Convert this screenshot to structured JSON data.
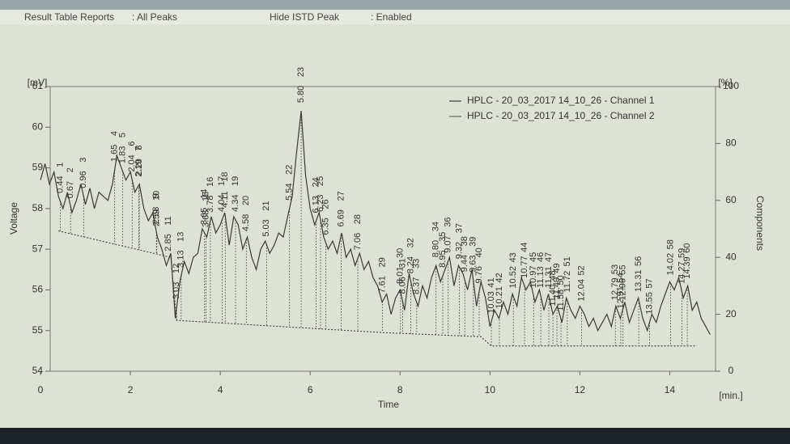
{
  "header": {
    "report_label": "Result Table Reports",
    "report_value": ": All Peaks",
    "istd_label": "Hide ISTD Peak",
    "istd_value": ": Enabled"
  },
  "chart_data": {
    "type": "line",
    "xlabel": "Time",
    "xunit": "[min.]",
    "ylabel": "Voltage",
    "yunit": "[mV]",
    "y2label": "Components",
    "y2unit": "[%]",
    "xlim": [
      0,
      15
    ],
    "xticks": [
      0,
      2,
      4,
      6,
      8,
      10,
      12,
      14
    ],
    "ylim": [
      54,
      61
    ],
    "yticks": [
      54,
      55,
      56,
      57,
      58,
      59,
      60,
      61
    ],
    "y2lim": [
      0,
      100
    ],
    "y2ticks": [
      0,
      20,
      40,
      60,
      80,
      100
    ],
    "legend_position": "upper right",
    "legend": [
      {
        "name": "HPLC - 20_03_2017 14_10_26 - Channel 1",
        "color": "#3a3a3a"
      },
      {
        "name": "HPLC - 20_03_2017 14_10_26 - Channel 2",
        "color": "#6a6a6a"
      }
    ],
    "series": [
      {
        "name": "HPLC - 20_03_2017 14_10_26 - Channel 1",
        "color": "#3a3a3a",
        "x": [
          0,
          0.1,
          0.2,
          0.3,
          0.4,
          0.5,
          0.6,
          0.7,
          0.8,
          0.9,
          1,
          1.1,
          1.2,
          1.3,
          1.4,
          1.5,
          1.6,
          1.7,
          1.8,
          1.9,
          2,
          2.1,
          2.2,
          2.3,
          2.4,
          2.5,
          2.6,
          2.7,
          2.8,
          2.9,
          3,
          3.1,
          3.2,
          3.3,
          3.4,
          3.5,
          3.6,
          3.7,
          3.8,
          3.9,
          4,
          4.1,
          4.2,
          4.3,
          4.4,
          4.5,
          4.6,
          4.7,
          4.8,
          4.9,
          5,
          5.1,
          5.2,
          5.3,
          5.4,
          5.5,
          5.6,
          5.7,
          5.8,
          5.9,
          6,
          6.1,
          6.2,
          6.3,
          6.4,
          6.5,
          6.6,
          6.7,
          6.8,
          6.9,
          7,
          7.1,
          7.2,
          7.3,
          7.4,
          7.5,
          7.6,
          7.7,
          7.8,
          7.9,
          8,
          8.1,
          8.2,
          8.3,
          8.4,
          8.5,
          8.6,
          8.7,
          8.8,
          8.9,
          9,
          9.1,
          9.2,
          9.3,
          9.4,
          9.5,
          9.6,
          9.7,
          9.8,
          9.9,
          10,
          10.1,
          10.2,
          10.3,
          10.4,
          10.5,
          10.6,
          10.7,
          10.8,
          10.9,
          11,
          11.1,
          11.2,
          11.3,
          11.4,
          11.5,
          11.6,
          11.7,
          11.8,
          11.9,
          12,
          12.1,
          12.2,
          12.3,
          12.4,
          12.5,
          12.6,
          12.7,
          12.8,
          12.9,
          13,
          13.1,
          13.2,
          13.3,
          13.4,
          13.5,
          13.6,
          13.7,
          13.8,
          13.9,
          14,
          14.1,
          14.2,
          14.3,
          14.4,
          14.5,
          14.6,
          14.7,
          14.8,
          14.9
        ],
        "values": [
          58.7,
          59.1,
          58.6,
          58.9,
          58.3,
          58,
          58.4,
          57.9,
          58.2,
          58.6,
          58.1,
          58.5,
          58,
          58.4,
          58.3,
          58.2,
          58.6,
          59.3,
          59,
          58.7,
          58.9,
          58.4,
          58.6,
          58,
          57.7,
          57.9,
          57.3,
          57,
          56.6,
          56.9,
          55.3,
          56.2,
          56.7,
          56.4,
          56.8,
          56.9,
          57.5,
          57.3,
          57.8,
          57.4,
          57.6,
          57.9,
          57.1,
          57.8,
          57.6,
          57,
          57.3,
          56.8,
          56.5,
          57,
          57.2,
          56.9,
          57.1,
          57.4,
          57.3,
          57.8,
          58.3,
          59.4,
          60.4,
          58.8,
          58,
          57.6,
          57.9,
          57.3,
          57,
          57.2,
          56.9,
          57.4,
          56.8,
          57,
          56.6,
          56.9,
          56.5,
          56.7,
          56.3,
          56.1,
          55.7,
          55.9,
          55.4,
          55.8,
          56,
          55.5,
          56.4,
          55.9,
          55.6,
          56.1,
          55.8,
          56.3,
          56.6,
          56.2,
          56.5,
          56.8,
          56.1,
          56.6,
          56.4,
          56,
          56.5,
          55.6,
          56.2,
          55.8,
          55.1,
          55.5,
          55.3,
          55.7,
          55.4,
          55.9,
          55.6,
          56.3,
          56,
          56.2,
          55.7,
          56,
          55.5,
          55.9,
          55.4,
          55.6,
          55.2,
          55.8,
          55.5,
          55.3,
          55.6,
          55.4,
          55.1,
          55.3,
          55,
          55.2,
          55.4,
          55.1,
          55.6,
          55.3,
          55.7,
          55.2,
          55.5,
          55.8,
          55.3,
          55,
          55.4,
          55.2,
          55.6,
          55.9,
          56.2,
          56,
          56.3,
          55.8,
          56.1,
          55.5,
          55.7,
          55.3,
          55.1,
          54.9
        ]
      }
    ],
    "baseline": {
      "x": [
        0.4,
        2.9,
        3.03,
        7.6,
        9.8,
        10.03,
        14.6
      ],
      "values": [
        57.45,
        56.8,
        55.25,
        54.95,
        54.85,
        54.62,
        54.62
      ]
    },
    "peaks": {
      "numbers": [
        1,
        2,
        3,
        4,
        5,
        6,
        7,
        8,
        9,
        10,
        11,
        12,
        13,
        14,
        15,
        16,
        17,
        18,
        19,
        20,
        21,
        22,
        23,
        24,
        25,
        26,
        27,
        28,
        29,
        30,
        31,
        32,
        33,
        34,
        35,
        36,
        37,
        38,
        39,
        40,
        41,
        42,
        43,
        44,
        45,
        46,
        47,
        48,
        49,
        50,
        51,
        52,
        53,
        54,
        55,
        56,
        57,
        58,
        59,
        60
      ],
      "times": [
        0.44,
        0.67,
        0.96,
        1.65,
        1.83,
        2.04,
        2.19,
        2.2,
        2.58,
        2.59,
        2.85,
        3.03,
        3.13,
        3.65,
        3.68,
        3.78,
        4.04,
        4.11,
        4.34,
        4.58,
        5.03,
        5.54,
        5.8,
        6.13,
        6.23,
        6.35,
        6.69,
        7.06,
        7.61,
        8.01,
        8.06,
        8.24,
        8.37,
        8.8,
        8.95,
        9.07,
        9.32,
        9.44,
        9.63,
        9.76,
        10.03,
        10.21,
        10.52,
        10.77,
        10.97,
        11.13,
        11.31,
        11.4,
        11.49,
        11.58,
        11.72,
        12.04,
        12.79,
        12.91,
        12.96,
        13.31,
        13.55,
        14.02,
        14.27,
        14.39
      ],
      "time_labels": [
        "0.44",
        "0.67",
        "0.96",
        "1.65",
        "1.83",
        "2.04",
        "2.19",
        "2.20",
        "2.58",
        "2.59",
        "2.85",
        "3.03",
        "3.13",
        "3.65",
        "3.68",
        "3.78",
        "4.04",
        "4.11",
        "4.34",
        "4.58",
        "5.03",
        "5.54",
        "5.80",
        "6.13",
        "6.23",
        "6.35",
        "6.69",
        "7.06",
        "7.61",
        "8.01",
        "8.06",
        "8.24",
        "8.37",
        "8.80",
        "8.95",
        "9.07",
        "9.32",
        "9.44",
        "9.63",
        "9.76",
        "10.03",
        "10.21",
        "10.52",
        "10.77",
        "10.97",
        "11.13",
        "11.31",
        "11.40",
        "11.49",
        "11.58",
        "11.72",
        "12.04",
        "12.79",
        "12.91",
        "12.96",
        "13.31",
        "13.55",
        "14.02",
        "14.27",
        "14.39"
      ]
    }
  }
}
